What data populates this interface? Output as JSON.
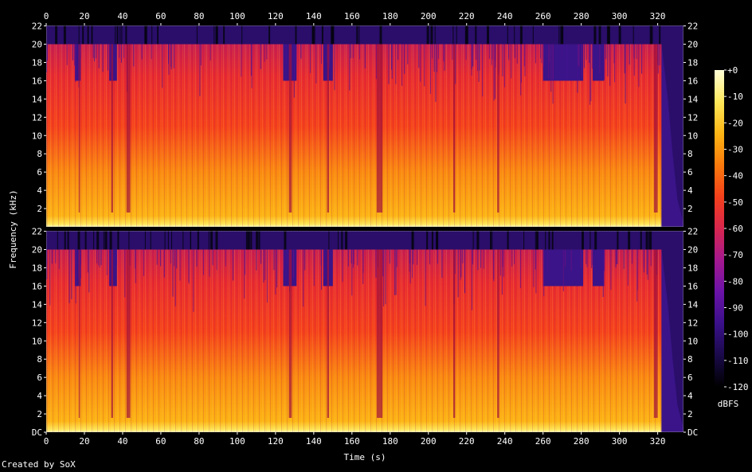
{
  "credit": "Created by SoX",
  "chart_data": {
    "type": "heatmap",
    "title": "",
    "xlabel": "Time (s)",
    "ylabel": "Frequency (kHz)",
    "xlim": [
      0,
      334
    ],
    "x_ticks": [
      0,
      20,
      40,
      60,
      80,
      100,
      120,
      140,
      160,
      180,
      200,
      220,
      240,
      260,
      280,
      300,
      320
    ],
    "ylim_khz": [
      0,
      22.05
    ],
    "y_tick_labels": [
      "DC",
      "2",
      "4",
      "6",
      "8",
      "10",
      "12",
      "14",
      "16",
      "18",
      "20",
      "22"
    ],
    "channels": 2,
    "colorbar": {
      "label": "dBFS",
      "range": [
        -120,
        0
      ],
      "tick_labels": [
        "+0",
        "-10",
        "-20",
        "-30",
        "-40",
        "-50",
        "-60",
        "-70",
        "-80",
        "-90",
        "-100",
        "-110",
        "-120"
      ],
      "colormap": [
        "#000000",
        "#1a0a4a",
        "#3a108a",
        "#6b13a8",
        "#a5188f",
        "#d8264e",
        "#f5401b",
        "#fa7a0c",
        "#fcb514",
        "#fde85a",
        "#ffffd8"
      ]
    },
    "content": {
      "cutoff_khz": 20,
      "reduced_cutoff_khz": 16,
      "reduced_cutoff_segments_s": [
        [
          15,
          18
        ],
        [
          33,
          37
        ],
        [
          124,
          131
        ],
        [
          145,
          150
        ],
        [
          260,
          281
        ],
        [
          286,
          292
        ]
      ],
      "quiet_gaps_s": [
        [
          17,
          17.6
        ],
        [
          34,
          35
        ],
        [
          42,
          44
        ],
        [
          127,
          128.5
        ],
        [
          147,
          148
        ],
        [
          173,
          176
        ],
        [
          213,
          214
        ],
        [
          236,
          237
        ],
        [
          318,
          320
        ]
      ],
      "fade_out_start_s": 322,
      "end_s": 334
    }
  }
}
